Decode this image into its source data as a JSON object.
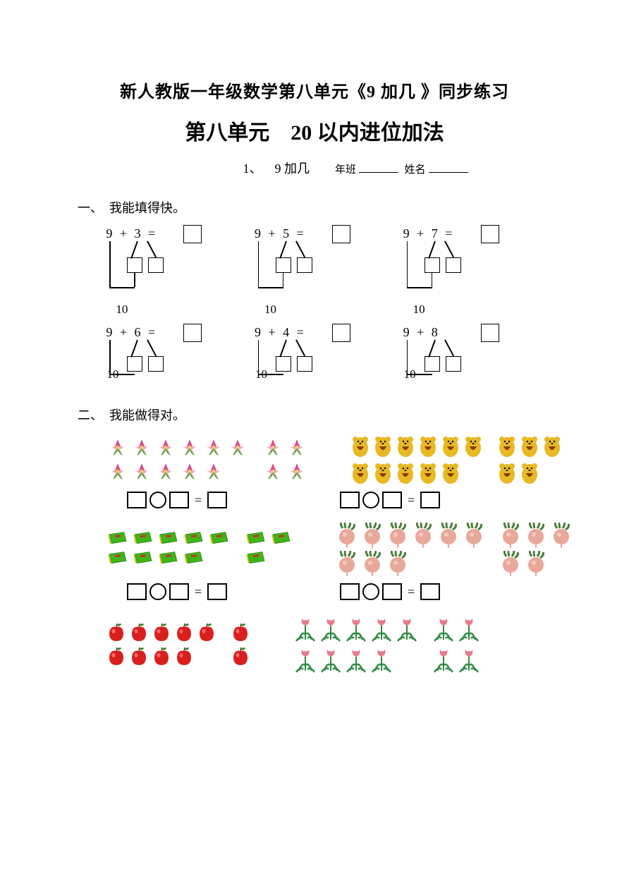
{
  "title1": "新人教版一年级数学第八单元《9 加几 》同步练习",
  "title2": "第八单元　20 以内进位加法",
  "subtitle_num": "1、",
  "subtitle_text": "9 加几",
  "class_label": "年班",
  "name_label": "姓名",
  "section1_label": "一、　我能填得快。",
  "section2_label": "二、　我能做得对。",
  "equations_row1": [
    {
      "expr": "9 + 3 =",
      "ten": "10"
    },
    {
      "expr": "9 + 5 =",
      "ten": "10"
    },
    {
      "expr": "9 + 7 =",
      "ten": "10"
    }
  ],
  "equations_row2": [
    {
      "expr": "9 + 6 =",
      "ten": "10"
    },
    {
      "expr": "9 + 4 =",
      "ten": "10"
    },
    {
      "expr": "9 + 8",
      "ten": "10"
    }
  ],
  "eq_sign": "=",
  "picture_problems": [
    {
      "left": {
        "type": "flower",
        "group1_rows": [
          6,
          5
        ],
        "group2_rows": [
          2,
          2
        ]
      },
      "right": {
        "type": "bear",
        "group1_rows": [
          6,
          5
        ],
        "group2_rows": [
          3,
          2
        ]
      }
    },
    {
      "left": {
        "type": "book",
        "group1_rows": [
          5,
          4
        ],
        "group2_rows": [
          2,
          1
        ]
      },
      "right": {
        "type": "radish",
        "group1_rows": [
          6,
          3
        ],
        "group2_rows": [
          3,
          2
        ]
      }
    },
    {
      "left": {
        "type": "apple",
        "group1_rows": [
          5,
          4
        ],
        "group2_rows": [
          1,
          1
        ]
      },
      "right": {
        "type": "tulip",
        "group1_rows": [
          5,
          4
        ],
        "group2_rows": [
          2,
          2
        ]
      }
    }
  ],
  "colors": {
    "flower_petal": "#d94f8f",
    "flower_leaf": "#6ab04c",
    "bear_body": "#e8b923",
    "bear_bib": "#8b3a1a",
    "book_cover": "#3fb618",
    "book_accent": "#c0392b",
    "book_spine": "#d4c41f",
    "radish_body": "#e8a89a",
    "radish_leaf": "#4a7c3a",
    "apple_body": "#d91e1e",
    "apple_leaf": "#3a7c1e",
    "tulip_petal": "#e87a8a",
    "tulip_stem": "#2d8a3e"
  }
}
